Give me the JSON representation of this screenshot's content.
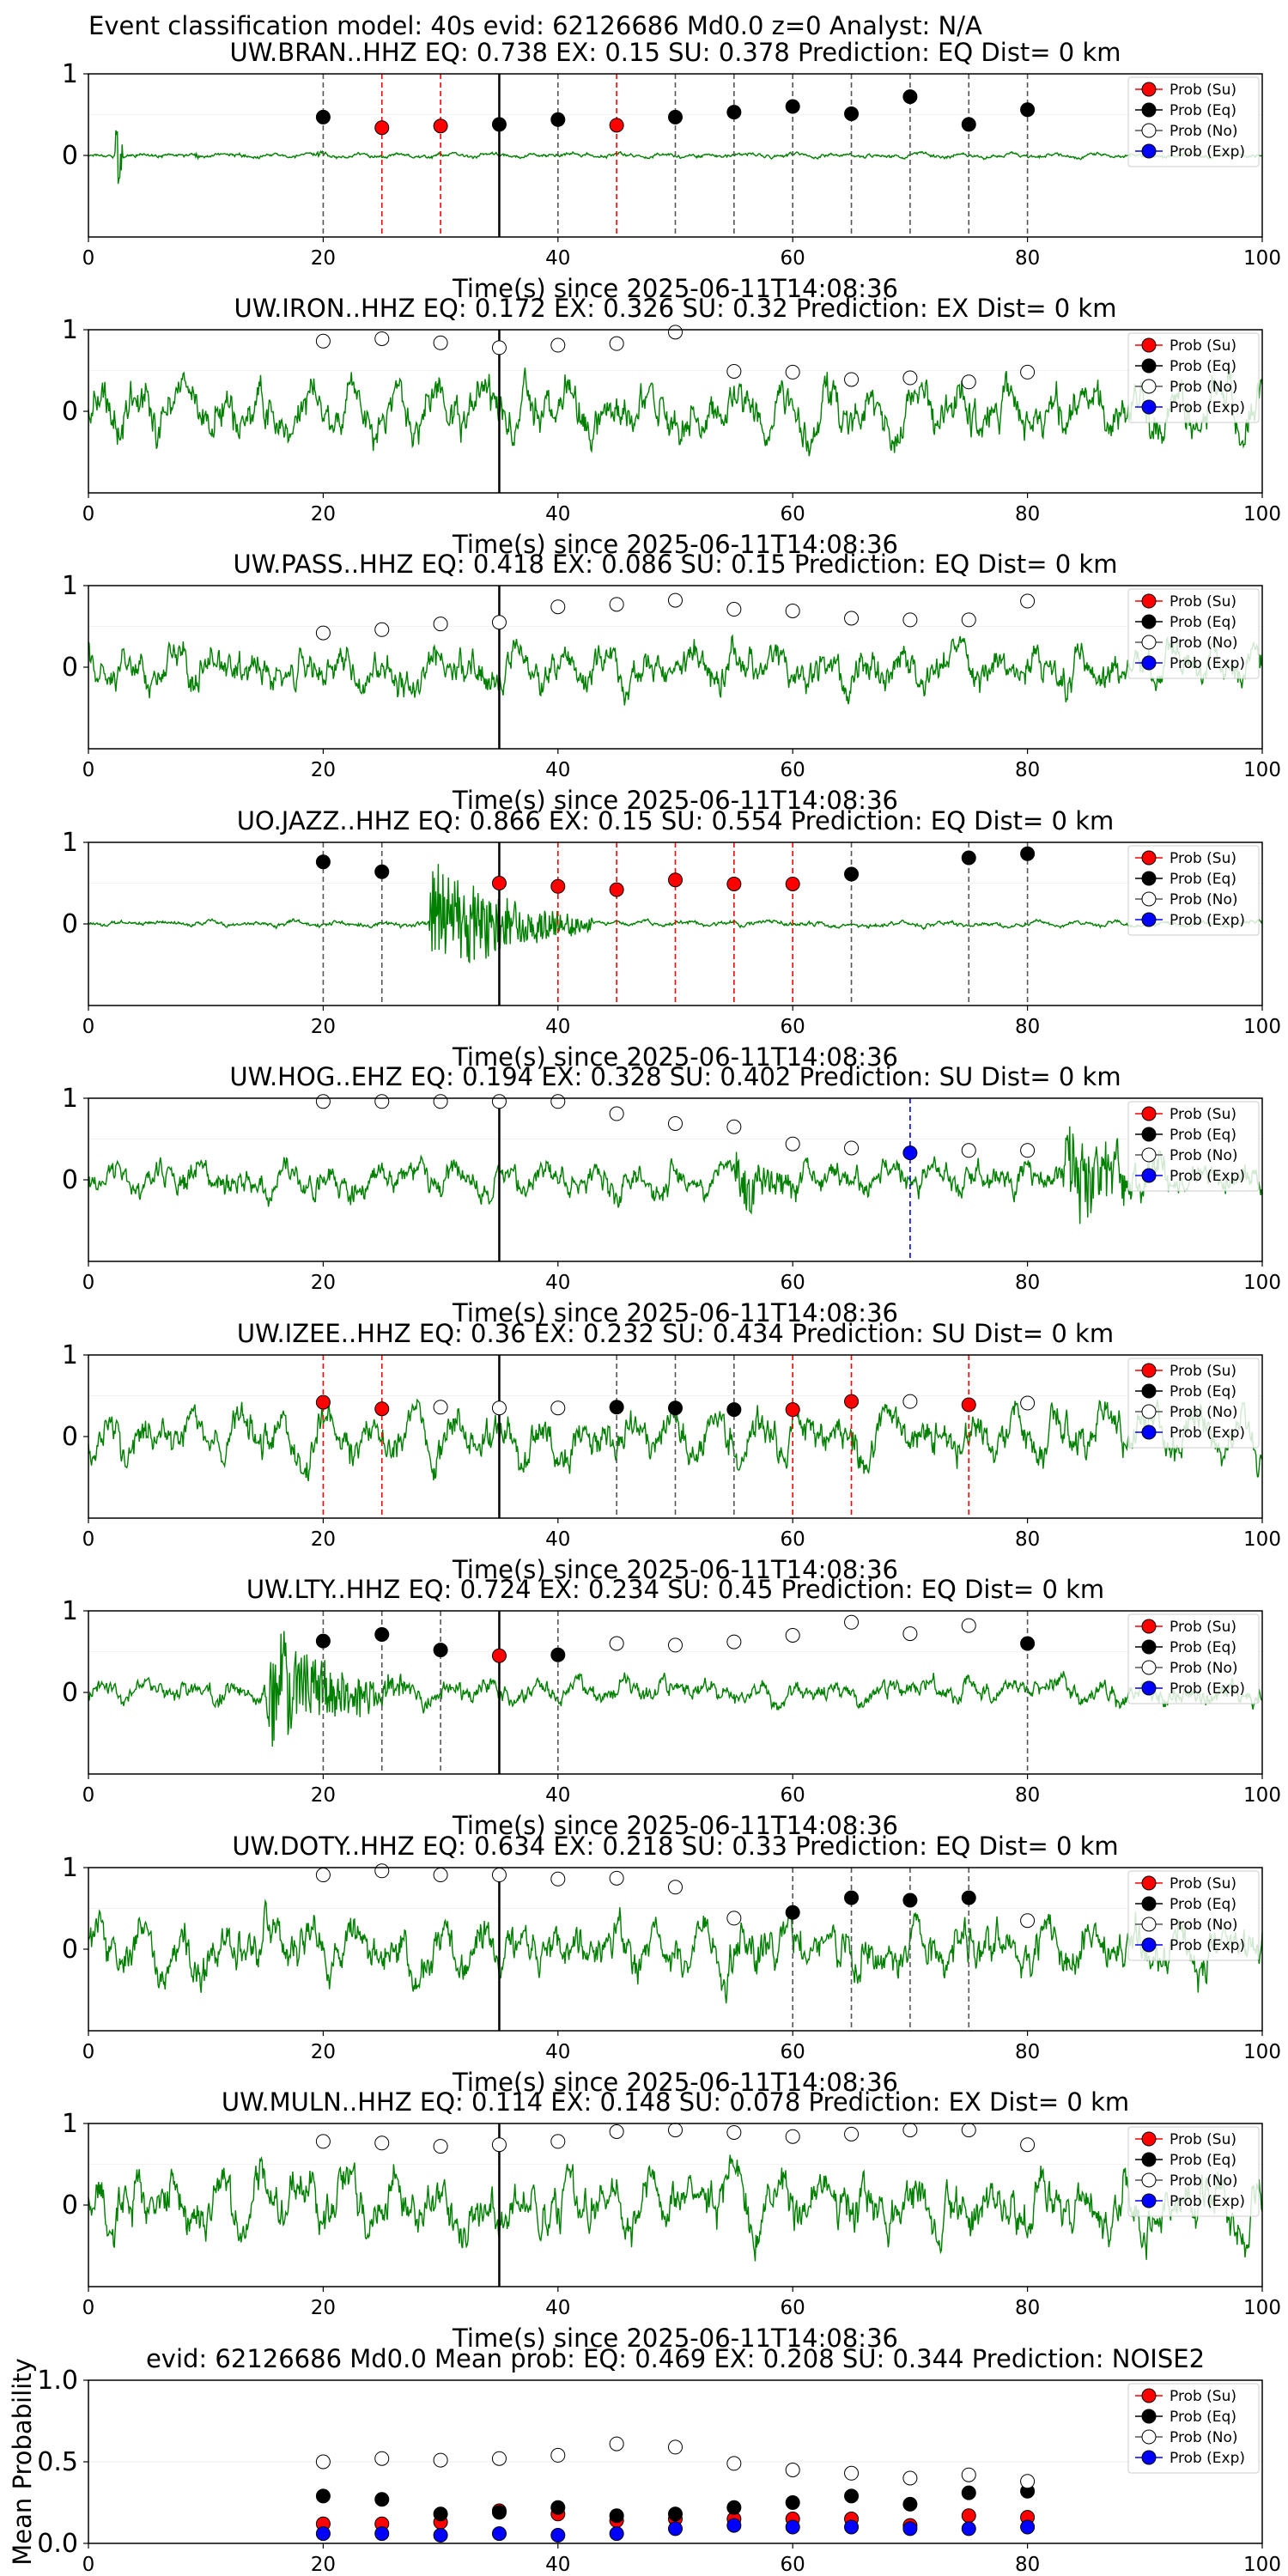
{
  "figure": {
    "suptitle": "Event classification model: 40s evid: 62126686 Md0.0 z=0 Analyst: N/A"
  },
  "legend_labels": [
    "Prob (Su)",
    "Prob (Eq)",
    "Prob (No)",
    "Prob (Exp)"
  ],
  "colors": {
    "waveform": "#008000",
    "su": "#ff0000",
    "eq": "#000000",
    "no": "#ffffff",
    "exp": "#0000ff",
    "su_line": "#ff0000",
    "eq_line": "#555555",
    "exp_line": "#0000ff"
  },
  "chart_data": [
    {
      "type": "line",
      "title": "UW.BRAN..HHZ   EQ: 0.738  EX: 0.15  SU: 0.378   Prediction: EQ    Dist= 0 km",
      "xlabel": "Time(s) since 2025-06-11T14:08:36",
      "xlim": [
        0,
        100
      ],
      "ylim": [
        -1,
        1
      ],
      "xticks": [
        "0",
        "20",
        "40",
        "60",
        "80",
        "100"
      ],
      "yticks": [
        "1",
        "0"
      ],
      "vline": 35,
      "noise": 0.05,
      "bursts": [
        {
          "t": 2.2,
          "amp": 1.0,
          "dur": 0.8
        },
        {
          "t": 9,
          "amp": 0.12,
          "dur": 0.5
        },
        {
          "t": 19.5,
          "amp": 0.1,
          "dur": 0.6
        }
      ],
      "points": [
        {
          "t": 20,
          "p": 0.47,
          "c": "eq"
        },
        {
          "t": 25,
          "p": 0.34,
          "c": "su"
        },
        {
          "t": 30,
          "p": 0.36,
          "c": "su"
        },
        {
          "t": 35,
          "p": 0.38,
          "c": "eq"
        },
        {
          "t": 40,
          "p": 0.44,
          "c": "eq"
        },
        {
          "t": 45,
          "p": 0.37,
          "c": "su"
        },
        {
          "t": 50,
          "p": 0.47,
          "c": "eq"
        },
        {
          "t": 55,
          "p": 0.53,
          "c": "eq"
        },
        {
          "t": 60,
          "p": 0.6,
          "c": "eq"
        },
        {
          "t": 65,
          "p": 0.51,
          "c": "eq"
        },
        {
          "t": 70,
          "p": 0.72,
          "c": "eq"
        },
        {
          "t": 75,
          "p": 0.38,
          "c": "eq"
        },
        {
          "t": 80,
          "p": 0.56,
          "c": "eq"
        }
      ]
    },
    {
      "type": "line",
      "title": "UW.IRON..HHZ   EQ: 0.172  EX: 0.326  SU: 0.32   Prediction: EX    Dist= 0 km",
      "xlabel": "Time(s) since 2025-06-11T14:08:36",
      "xlim": [
        0,
        100
      ],
      "ylim": [
        -1,
        1
      ],
      "xticks": [
        "0",
        "20",
        "40",
        "60",
        "80",
        "100"
      ],
      "yticks": [
        "1",
        "0"
      ],
      "vline": 35,
      "noise": 0.55,
      "bursts": [],
      "points": [
        {
          "t": 20,
          "p": 0.86,
          "c": "no"
        },
        {
          "t": 25,
          "p": 0.89,
          "c": "no"
        },
        {
          "t": 30,
          "p": 0.84,
          "c": "no"
        },
        {
          "t": 35,
          "p": 0.78,
          "c": "no"
        },
        {
          "t": 40,
          "p": 0.81,
          "c": "no"
        },
        {
          "t": 45,
          "p": 0.83,
          "c": "no"
        },
        {
          "t": 50,
          "p": 0.97,
          "c": "no"
        },
        {
          "t": 55,
          "p": 0.49,
          "c": "no"
        },
        {
          "t": 60,
          "p": 0.48,
          "c": "no"
        },
        {
          "t": 65,
          "p": 0.39,
          "c": "no"
        },
        {
          "t": 70,
          "p": 0.41,
          "c": "no"
        },
        {
          "t": 75,
          "p": 0.36,
          "c": "no"
        },
        {
          "t": 80,
          "p": 0.48,
          "c": "no"
        }
      ]
    },
    {
      "type": "line",
      "title": "UW.PASS..HHZ   EQ: 0.418  EX: 0.086  SU: 0.15   Prediction: EQ    Dist= 0 km",
      "xlabel": "Time(s) since 2025-06-11T14:08:36",
      "xlim": [
        0,
        100
      ],
      "ylim": [
        -1,
        1
      ],
      "xticks": [
        "0",
        "20",
        "40",
        "60",
        "80",
        "100"
      ],
      "yticks": [
        "1",
        "0"
      ],
      "vline": 35,
      "noise": 0.45,
      "bursts": [],
      "points": [
        {
          "t": 20,
          "p": 0.42,
          "c": "no"
        },
        {
          "t": 25,
          "p": 0.46,
          "c": "no"
        },
        {
          "t": 30,
          "p": 0.53,
          "c": "no"
        },
        {
          "t": 35,
          "p": 0.55,
          "c": "no"
        },
        {
          "t": 40,
          "p": 0.74,
          "c": "no"
        },
        {
          "t": 45,
          "p": 0.77,
          "c": "no"
        },
        {
          "t": 50,
          "p": 0.82,
          "c": "no"
        },
        {
          "t": 55,
          "p": 0.71,
          "c": "no"
        },
        {
          "t": 60,
          "p": 0.69,
          "c": "no"
        },
        {
          "t": 65,
          "p": 0.6,
          "c": "no"
        },
        {
          "t": 70,
          "p": 0.58,
          "c": "no"
        },
        {
          "t": 75,
          "p": 0.58,
          "c": "no"
        },
        {
          "t": 80,
          "p": 0.81,
          "c": "no"
        }
      ]
    },
    {
      "type": "line",
      "title": "UO.JAZZ..HHZ   EQ: 0.866  EX: 0.15  SU: 0.554   Prediction: EQ    Dist= 0 km",
      "xlabel": "Time(s) since 2025-06-11T14:08:36",
      "xlim": [
        0,
        100
      ],
      "ylim": [
        -1,
        1
      ],
      "xticks": [
        "0",
        "20",
        "40",
        "60",
        "80",
        "100"
      ],
      "yticks": [
        "1",
        "0"
      ],
      "vline": 35,
      "noise": 0.06,
      "bursts": [
        {
          "t": 29,
          "amp": 0.8,
          "dur": 14
        }
      ],
      "points": [
        {
          "t": 20,
          "p": 0.76,
          "c": "eq"
        },
        {
          "t": 25,
          "p": 0.64,
          "c": "eq"
        },
        {
          "t": 35,
          "p": 0.5,
          "c": "su"
        },
        {
          "t": 40,
          "p": 0.46,
          "c": "su"
        },
        {
          "t": 45,
          "p": 0.42,
          "c": "su"
        },
        {
          "t": 50,
          "p": 0.54,
          "c": "su"
        },
        {
          "t": 55,
          "p": 0.49,
          "c": "su"
        },
        {
          "t": 60,
          "p": 0.49,
          "c": "su"
        },
        {
          "t": 65,
          "p": 0.61,
          "c": "eq"
        },
        {
          "t": 75,
          "p": 0.81,
          "c": "eq"
        },
        {
          "t": 80,
          "p": 0.86,
          "c": "eq"
        }
      ]
    },
    {
      "type": "line",
      "title": "UW.HOG..EHZ   EQ: 0.194  EX: 0.328  SU: 0.402   Prediction: SU    Dist= 0 km",
      "xlabel": "Time(s) since 2025-06-11T14:08:36",
      "xlim": [
        0,
        100
      ],
      "ylim": [
        -1,
        1
      ],
      "xticks": [
        "0",
        "20",
        "40",
        "60",
        "80",
        "100"
      ],
      "yticks": [
        "1",
        "0"
      ],
      "vline": 35,
      "noise": 0.35,
      "bursts": [
        {
          "t": 83,
          "amp": 0.7,
          "dur": 9
        },
        {
          "t": 55,
          "amp": 0.35,
          "dur": 6
        }
      ],
      "points": [
        {
          "t": 20,
          "p": 0.96,
          "c": "no"
        },
        {
          "t": 25,
          "p": 0.96,
          "c": "no"
        },
        {
          "t": 30,
          "p": 0.96,
          "c": "no"
        },
        {
          "t": 35,
          "p": 0.96,
          "c": "no"
        },
        {
          "t": 40,
          "p": 0.96,
          "c": "no"
        },
        {
          "t": 45,
          "p": 0.81,
          "c": "no"
        },
        {
          "t": 50,
          "p": 0.69,
          "c": "no"
        },
        {
          "t": 55,
          "p": 0.65,
          "c": "no"
        },
        {
          "t": 60,
          "p": 0.44,
          "c": "no"
        },
        {
          "t": 65,
          "p": 0.39,
          "c": "no"
        },
        {
          "t": 70,
          "p": 0.33,
          "c": "exp"
        },
        {
          "t": 75,
          "p": 0.36,
          "c": "no"
        },
        {
          "t": 80,
          "p": 0.36,
          "c": "no"
        }
      ]
    },
    {
      "type": "line",
      "title": "UW.IZEE..HHZ   EQ: 0.36  EX: 0.232  SU: 0.434   Prediction: SU    Dist= 0 km",
      "xlabel": "Time(s) since 2025-06-11T14:08:36",
      "xlim": [
        0,
        100
      ],
      "ylim": [
        -1,
        1
      ],
      "xticks": [
        "0",
        "20",
        "40",
        "60",
        "80",
        "100"
      ],
      "yticks": [
        "1",
        "0"
      ],
      "vline": 35,
      "noise": 0.5,
      "bursts": [],
      "points": [
        {
          "t": 20,
          "p": 0.42,
          "c": "su"
        },
        {
          "t": 25,
          "p": 0.34,
          "c": "su"
        },
        {
          "t": 30,
          "p": 0.36,
          "c": "no"
        },
        {
          "t": 35,
          "p": 0.35,
          "c": "no"
        },
        {
          "t": 40,
          "p": 0.35,
          "c": "no"
        },
        {
          "t": 45,
          "p": 0.36,
          "c": "eq"
        },
        {
          "t": 50,
          "p": 0.35,
          "c": "eq"
        },
        {
          "t": 55,
          "p": 0.33,
          "c": "eq"
        },
        {
          "t": 60,
          "p": 0.33,
          "c": "su"
        },
        {
          "t": 65,
          "p": 0.43,
          "c": "su"
        },
        {
          "t": 70,
          "p": 0.43,
          "c": "no"
        },
        {
          "t": 75,
          "p": 0.39,
          "c": "su"
        },
        {
          "t": 80,
          "p": 0.41,
          "c": "no"
        }
      ]
    },
    {
      "type": "line",
      "title": "UW.LTY..HHZ   EQ: 0.724  EX: 0.234  SU: 0.45   Prediction: EQ    Dist= 0 km",
      "xlabel": "Time(s) since 2025-06-11T14:08:36",
      "xlim": [
        0,
        100
      ],
      "ylim": [
        -1,
        1
      ],
      "xticks": [
        "0",
        "20",
        "40",
        "60",
        "80",
        "100"
      ],
      "yticks": [
        "1",
        "0"
      ],
      "vline": 35,
      "noise": 0.25,
      "bursts": [
        {
          "t": 15,
          "amp": 0.85,
          "dur": 12
        }
      ],
      "points": [
        {
          "t": 20,
          "p": 0.63,
          "c": "eq"
        },
        {
          "t": 25,
          "p": 0.71,
          "c": "eq"
        },
        {
          "t": 30,
          "p": 0.52,
          "c": "eq"
        },
        {
          "t": 35,
          "p": 0.45,
          "c": "su"
        },
        {
          "t": 40,
          "p": 0.46,
          "c": "eq"
        },
        {
          "t": 45,
          "p": 0.6,
          "c": "no"
        },
        {
          "t": 50,
          "p": 0.58,
          "c": "no"
        },
        {
          "t": 55,
          "p": 0.62,
          "c": "no"
        },
        {
          "t": 60,
          "p": 0.7,
          "c": "no"
        },
        {
          "t": 65,
          "p": 0.86,
          "c": "no"
        },
        {
          "t": 70,
          "p": 0.72,
          "c": "no"
        },
        {
          "t": 75,
          "p": 0.82,
          "c": "no"
        },
        {
          "t": 80,
          "p": 0.6,
          "c": "eq"
        }
      ]
    },
    {
      "type": "line",
      "title": "UW.DOTY..HHZ   EQ: 0.634  EX: 0.218  SU: 0.33   Prediction: EQ    Dist= 0 km",
      "xlabel": "Time(s) since 2025-06-11T14:08:36",
      "xlim": [
        0,
        100
      ],
      "ylim": [
        -1,
        1
      ],
      "xticks": [
        "0",
        "20",
        "40",
        "60",
        "80",
        "100"
      ],
      "yticks": [
        "1",
        "0"
      ],
      "vline": 35,
      "noise": 0.55,
      "bursts": [],
      "points": [
        {
          "t": 20,
          "p": 0.91,
          "c": "no"
        },
        {
          "t": 25,
          "p": 0.96,
          "c": "no"
        },
        {
          "t": 30,
          "p": 0.91,
          "c": "no"
        },
        {
          "t": 35,
          "p": 0.91,
          "c": "no"
        },
        {
          "t": 40,
          "p": 0.86,
          "c": "no"
        },
        {
          "t": 45,
          "p": 0.87,
          "c": "no"
        },
        {
          "t": 50,
          "p": 0.76,
          "c": "no"
        },
        {
          "t": 55,
          "p": 0.38,
          "c": "no"
        },
        {
          "t": 60,
          "p": 0.45,
          "c": "eq"
        },
        {
          "t": 65,
          "p": 0.63,
          "c": "eq"
        },
        {
          "t": 70,
          "p": 0.6,
          "c": "eq"
        },
        {
          "t": 75,
          "p": 0.63,
          "c": "eq"
        },
        {
          "t": 80,
          "p": 0.35,
          "c": "no"
        }
      ]
    },
    {
      "type": "line",
      "title": "UW.MULN..HHZ   EQ: 0.114  EX: 0.148  SU: 0.078   Prediction: EX    Dist= 0 km",
      "xlabel": "Time(s) since 2025-06-11T14:08:36",
      "xlim": [
        0,
        100
      ],
      "ylim": [
        -1,
        1
      ],
      "xticks": [
        "0",
        "20",
        "40",
        "60",
        "80",
        "100"
      ],
      "yticks": [
        "1",
        "0"
      ],
      "vline": 35,
      "noise": 0.6,
      "bursts": [],
      "points": [
        {
          "t": 20,
          "p": 0.78,
          "c": "no"
        },
        {
          "t": 25,
          "p": 0.76,
          "c": "no"
        },
        {
          "t": 30,
          "p": 0.72,
          "c": "no"
        },
        {
          "t": 35,
          "p": 0.74,
          "c": "no"
        },
        {
          "t": 40,
          "p": 0.78,
          "c": "no"
        },
        {
          "t": 45,
          "p": 0.9,
          "c": "no"
        },
        {
          "t": 50,
          "p": 0.92,
          "c": "no"
        },
        {
          "t": 55,
          "p": 0.89,
          "c": "no"
        },
        {
          "t": 60,
          "p": 0.84,
          "c": "no"
        },
        {
          "t": 65,
          "p": 0.87,
          "c": "no"
        },
        {
          "t": 70,
          "p": 0.92,
          "c": "no"
        },
        {
          "t": 75,
          "p": 0.92,
          "c": "no"
        },
        {
          "t": 80,
          "p": 0.74,
          "c": "no"
        }
      ]
    },
    {
      "type": "scatter",
      "title": "evid: 62126686  Md0.0   Mean prob:    EQ: 0.469  EX: 0.208  SU: 0.344   Prediction: NOISE2",
      "ylabel": "Mean Probability",
      "xlim": [
        0,
        100
      ],
      "ylim": [
        0,
        1
      ],
      "xticks": [
        "0",
        "20",
        "40",
        "60",
        "80",
        "100"
      ],
      "yticks": [
        "1.0",
        "0.5",
        "0.0"
      ],
      "x": [
        20,
        25,
        30,
        35,
        40,
        45,
        50,
        55,
        60,
        65,
        70,
        75,
        80
      ],
      "series": [
        {
          "name": "Prob (Su)",
          "c": "su",
          "values": [
            0.12,
            0.12,
            0.13,
            0.2,
            0.18,
            0.14,
            0.15,
            0.15,
            0.15,
            0.15,
            0.11,
            0.17,
            0.16
          ]
        },
        {
          "name": "Prob (Eq)",
          "c": "eq",
          "values": [
            0.29,
            0.27,
            0.18,
            0.19,
            0.22,
            0.17,
            0.18,
            0.22,
            0.25,
            0.29,
            0.24,
            0.31,
            0.32
          ]
        },
        {
          "name": "Prob (No)",
          "c": "no",
          "values": [
            0.5,
            0.52,
            0.51,
            0.52,
            0.54,
            0.61,
            0.59,
            0.49,
            0.45,
            0.43,
            0.4,
            0.42,
            0.38
          ]
        },
        {
          "name": "Prob (Exp)",
          "c": "exp",
          "values": [
            0.06,
            0.06,
            0.05,
            0.06,
            0.05,
            0.06,
            0.09,
            0.11,
            0.1,
            0.1,
            0.09,
            0.09,
            0.1
          ]
        }
      ]
    }
  ]
}
